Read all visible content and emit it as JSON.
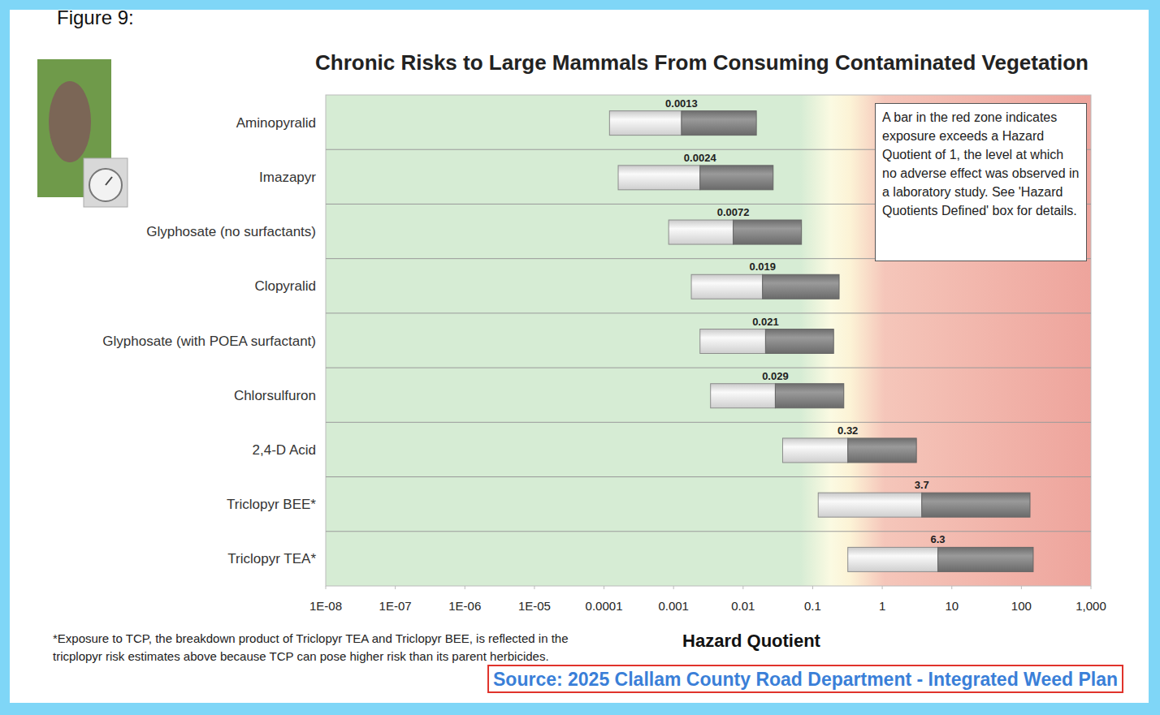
{
  "chart_data": {
    "type": "bar",
    "orientation": "horizontal",
    "figure_label": "Figure 9:",
    "title": "Chronic Risks to Large Mammals From Consuming Contaminated Vegetation",
    "categories": [
      "Aminopyralid",
      "Imazapyr",
      "Glyphosate (no surfactants)",
      "Clopyralid",
      "Glyphosate (with POEA surfactant)",
      "Chlorsulfuron",
      "2,4-D Acid",
      "Triclopyr BEE*",
      "Triclopyr TEA*"
    ],
    "values": [
      0.0013,
      0.0024,
      0.0072,
      0.019,
      0.021,
      0.029,
      0.32,
      3.7,
      6.3
    ],
    "low": [
      0.00012,
      0.00016,
      0.00085,
      0.0018,
      0.0024,
      0.0034,
      0.037,
      0.12,
      0.32
    ],
    "high": [
      0.0155,
      0.027,
      0.069,
      0.24,
      0.2,
      0.28,
      3.1,
      133,
      148
    ],
    "data_labels": true,
    "log": "x",
    "grid": false,
    "xlim": [
      1e-08,
      1000
    ],
    "xticks": [
      {
        "value": 1e-08,
        "label": "1E-08"
      },
      {
        "value": 1e-07,
        "label": "1E-07"
      },
      {
        "value": 1e-06,
        "label": "1E-06"
      },
      {
        "value": 1e-05,
        "label": "1E-05"
      },
      0.0001,
      0.001,
      0.01,
      0.1,
      1,
      10,
      100,
      {
        "value": 1000,
        "label": "1,000"
      }
    ],
    "x_label": "Hazard Quotient",
    "annotation": "A bar in the red zone indicates exposure exceeds a Hazard Quotient of 1, the level at which no adverse effect was observed in a laboratory study. See 'Hazard Quotients Defined' box for details.",
    "footnote": [
      "*Exposure to TCP, the breakdown product of Triclopyr TEA and Triclopyr BEE, is reflected in the",
      "tricplopyr risk estimates above because TCP can pose higher risk than its parent herbicides."
    ],
    "source": "Source: 2025 Clallam County Road Department - Integrated Weed Plan"
  }
}
